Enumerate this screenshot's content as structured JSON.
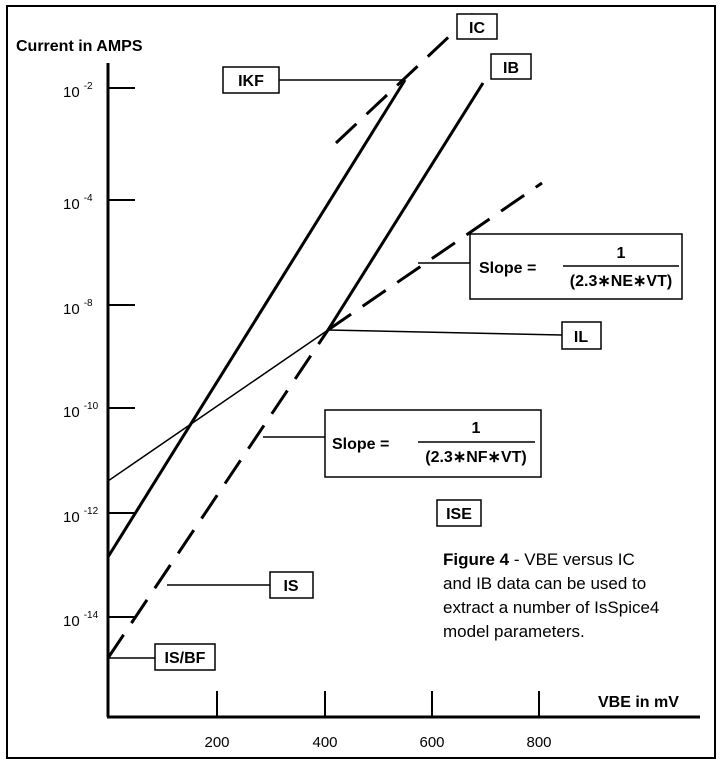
{
  "y_axis": {
    "title": "Current in AMPS",
    "base": "10",
    "exponents": [
      "-2",
      "-4",
      "-8",
      "-10",
      "-12",
      "-14"
    ]
  },
  "x_axis": {
    "title": "VBE in mV",
    "ticks": [
      "200",
      "400",
      "600",
      "800"
    ]
  },
  "labels": {
    "ic": "IC",
    "ib": "IB",
    "ikf": "IKF",
    "il": "IL",
    "ise": "ISE",
    "is": "IS",
    "is_bf": "IS/BF"
  },
  "slopes": {
    "ne": {
      "prefix": "Slope =",
      "numerator": "1",
      "denominator": "(2.3∗NE∗VT)"
    },
    "nf": {
      "prefix": "Slope =",
      "numerator": "1",
      "denominator": "(2.3∗NF∗VT)"
    }
  },
  "caption": {
    "figure": "Figure 4",
    "line1": " - VBE versus IC",
    "line2": "and IB data can be used to",
    "line3": "extract a number of IsSpice4",
    "line4": "model parameters."
  }
}
